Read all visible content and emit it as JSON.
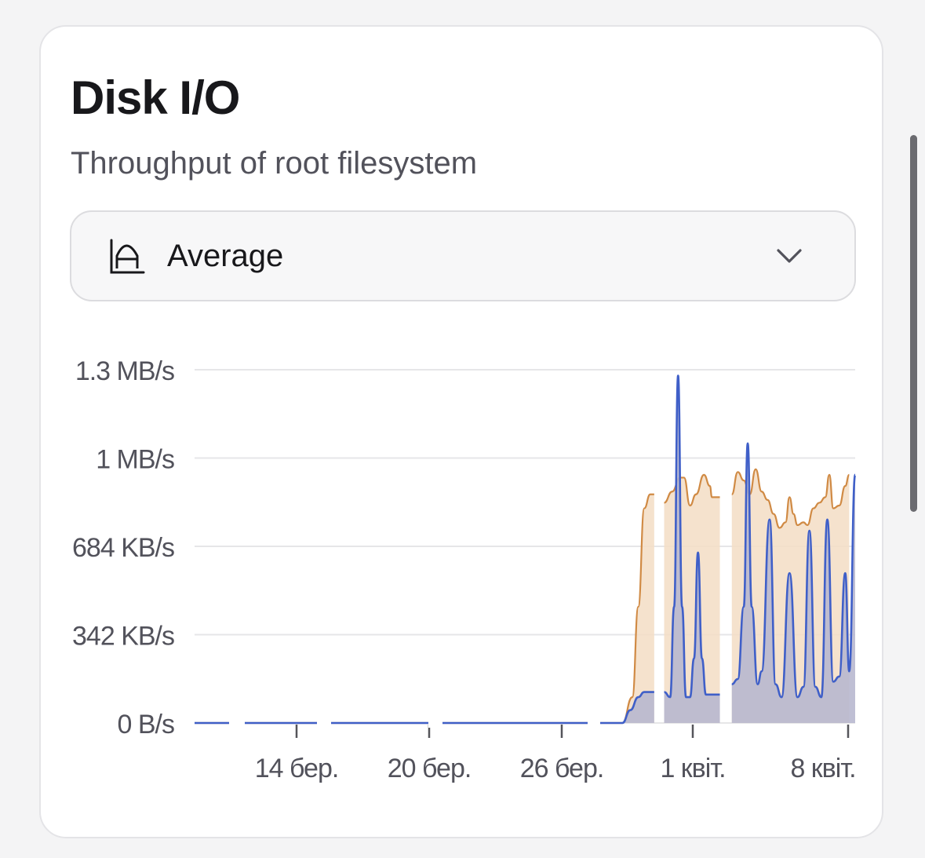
{
  "card": {
    "title": "Disk I/O",
    "subtitle": "Throughput of root filesystem"
  },
  "select": {
    "icon": "area-chart-icon",
    "value": "Average"
  },
  "colors": {
    "write_line": "#d08a44",
    "write_fill": "#f3ddc4",
    "read_line": "#3f5fc8",
    "read_fill": "#b8b8cf",
    "grid": "#e6e6e8",
    "axis_text": "#52525b"
  },
  "chart_data": {
    "type": "area",
    "y_ticks": [
      "0 B/s",
      "342 KB/s",
      "684 KB/s",
      "1 MB/s",
      "1.3 MB/s"
    ],
    "x_ticks": [
      "14 бер.",
      "20 бер.",
      "26 бер.",
      "1 квіт.",
      "8 квіт."
    ],
    "ylim": [
      0,
      1.37
    ],
    "y_unit": "MB/s",
    "grid": true,
    "series": [
      {
        "color": "#d08a44",
        "segments": [
          [
            [
              0.0,
              0
            ],
            [
              21.5,
              0
            ],
            [
              22.0,
              0.1
            ],
            [
              22.3,
              0.45
            ],
            [
              22.6,
              0.82
            ],
            [
              22.9,
              0.87
            ],
            [
              23.1,
              0.87
            ]
          ],
          [
            [
              23.6,
              0.84
            ],
            [
              24.0,
              0.88
            ],
            [
              24.4,
              0.93
            ],
            [
              24.6,
              0.93
            ],
            [
              24.9,
              0.83
            ],
            [
              25.2,
              0.87
            ],
            [
              25.6,
              0.94
            ],
            [
              25.9,
              0.9
            ],
            [
              26.0,
              0.86
            ],
            [
              26.4,
              0.86
            ]
          ],
          [
            [
              27.0,
              0.87
            ],
            [
              27.3,
              0.95
            ],
            [
              27.6,
              0.92
            ],
            [
              27.9,
              0.87
            ],
            [
              28.2,
              0.96
            ],
            [
              28.5,
              0.88
            ],
            [
              28.8,
              0.85
            ],
            [
              29.1,
              0.8
            ],
            [
              29.4,
              0.75
            ],
            [
              29.7,
              0.77
            ],
            [
              29.9,
              0.86
            ],
            [
              30.1,
              0.8
            ],
            [
              30.3,
              0.76
            ],
            [
              30.6,
              0.77
            ],
            [
              30.8,
              0.76
            ],
            [
              31.1,
              0.82
            ],
            [
              31.4,
              0.84
            ],
            [
              31.7,
              0.86
            ],
            [
              31.9,
              0.94
            ],
            [
              32.1,
              0.82
            ],
            [
              32.4,
              0.83
            ],
            [
              32.7,
              0.9
            ],
            [
              32.9,
              0.94
            ]
          ]
        ]
      },
      {
        "color": "#3f5fc8",
        "segments": [
          [
            [
              0.0,
              0
            ],
            [
              21.5,
              0
            ],
            [
              21.9,
              0.05
            ],
            [
              22.3,
              0.1
            ],
            [
              22.6,
              0.12
            ],
            [
              23.1,
              0.12
            ]
          ],
          [
            [
              23.6,
              0.12
            ],
            [
              23.9,
              0.1
            ],
            [
              24.1,
              0.45
            ],
            [
              24.3,
              1.28
            ],
            [
              24.5,
              0.45
            ],
            [
              24.7,
              0.1
            ],
            [
              24.9,
              0.1
            ],
            [
              25.1,
              0.25
            ],
            [
              25.3,
              0.66
            ],
            [
              25.5,
              0.25
            ],
            [
              25.7,
              0.11
            ],
            [
              26.4,
              0.11
            ]
          ],
          [
            [
              27.0,
              0.15
            ],
            [
              27.3,
              0.17
            ],
            [
              27.6,
              0.45
            ],
            [
              27.8,
              1.05
            ],
            [
              28.0,
              0.45
            ],
            [
              28.3,
              0.15
            ],
            [
              28.5,
              0.2
            ],
            [
              28.9,
              0.78
            ],
            [
              29.2,
              0.15
            ],
            [
              29.5,
              0.1
            ],
            [
              29.9,
              0.58
            ],
            [
              30.3,
              0.1
            ],
            [
              30.6,
              0.14
            ],
            [
              30.9,
              0.74
            ],
            [
              31.2,
              0.14
            ],
            [
              31.5,
              0.1
            ],
            [
              31.8,
              0.78
            ],
            [
              32.1,
              0.16
            ],
            [
              32.4,
              0.18
            ],
            [
              32.7,
              0.58
            ],
            [
              32.9,
              0.2
            ],
            [
              33.2,
              0.94
            ]
          ]
        ]
      }
    ]
  }
}
